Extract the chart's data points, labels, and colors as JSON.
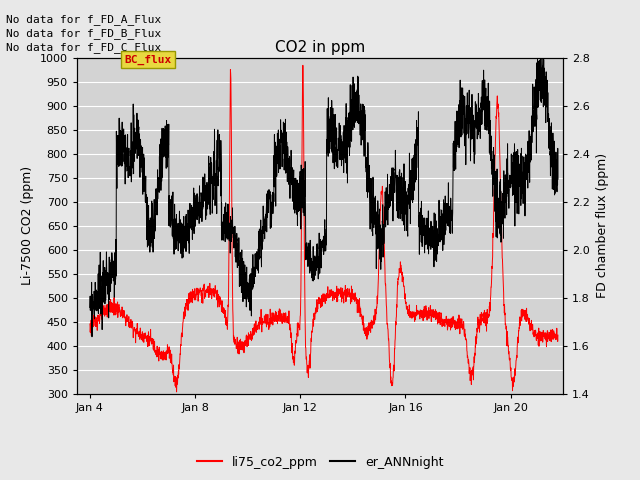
{
  "title": "CO2 in ppm",
  "ylabel_left": "Li-7500 CO2 (ppm)",
  "ylabel_right": "FD chamber flux (ppm)",
  "ylim_left": [
    300,
    1000
  ],
  "ylim_right": [
    1.4,
    2.8
  ],
  "yticks_left": [
    300,
    350,
    400,
    450,
    500,
    550,
    600,
    650,
    700,
    750,
    800,
    850,
    900,
    950,
    1000
  ],
  "yticks_right": [
    1.4,
    1.6,
    1.8,
    2.0,
    2.2,
    2.4,
    2.6,
    2.8
  ],
  "xlim": [
    3.5,
    22.0
  ],
  "xtick_positions": [
    4,
    8,
    12,
    16,
    20
  ],
  "xtick_labels": [
    "Jan 4",
    "Jan 8",
    "Jan 12",
    "Jan 16",
    "Jan 20"
  ],
  "legend_entries": [
    "li75_co2_ppm",
    "er_ANNnight"
  ],
  "legend_colors": [
    "#ff0000",
    "#000000"
  ],
  "no_data_texts": [
    "No data for f_FD_A_Flux",
    "No data for f_FD_B_Flux",
    "No data for f_FD_C_Flux"
  ],
  "bc_flux_label": "BC_flux",
  "bc_flux_label_color": "#cc0000",
  "bc_flux_bg_color": "#e8d840",
  "background_color": "#e8e8e8",
  "plot_bg_color": "#d3d3d3",
  "grid_color": "#ffffff",
  "title_fontsize": 11,
  "axis_label_fontsize": 9,
  "tick_fontsize": 8,
  "legend_fontsize": 9,
  "nodata_fontsize": 8
}
